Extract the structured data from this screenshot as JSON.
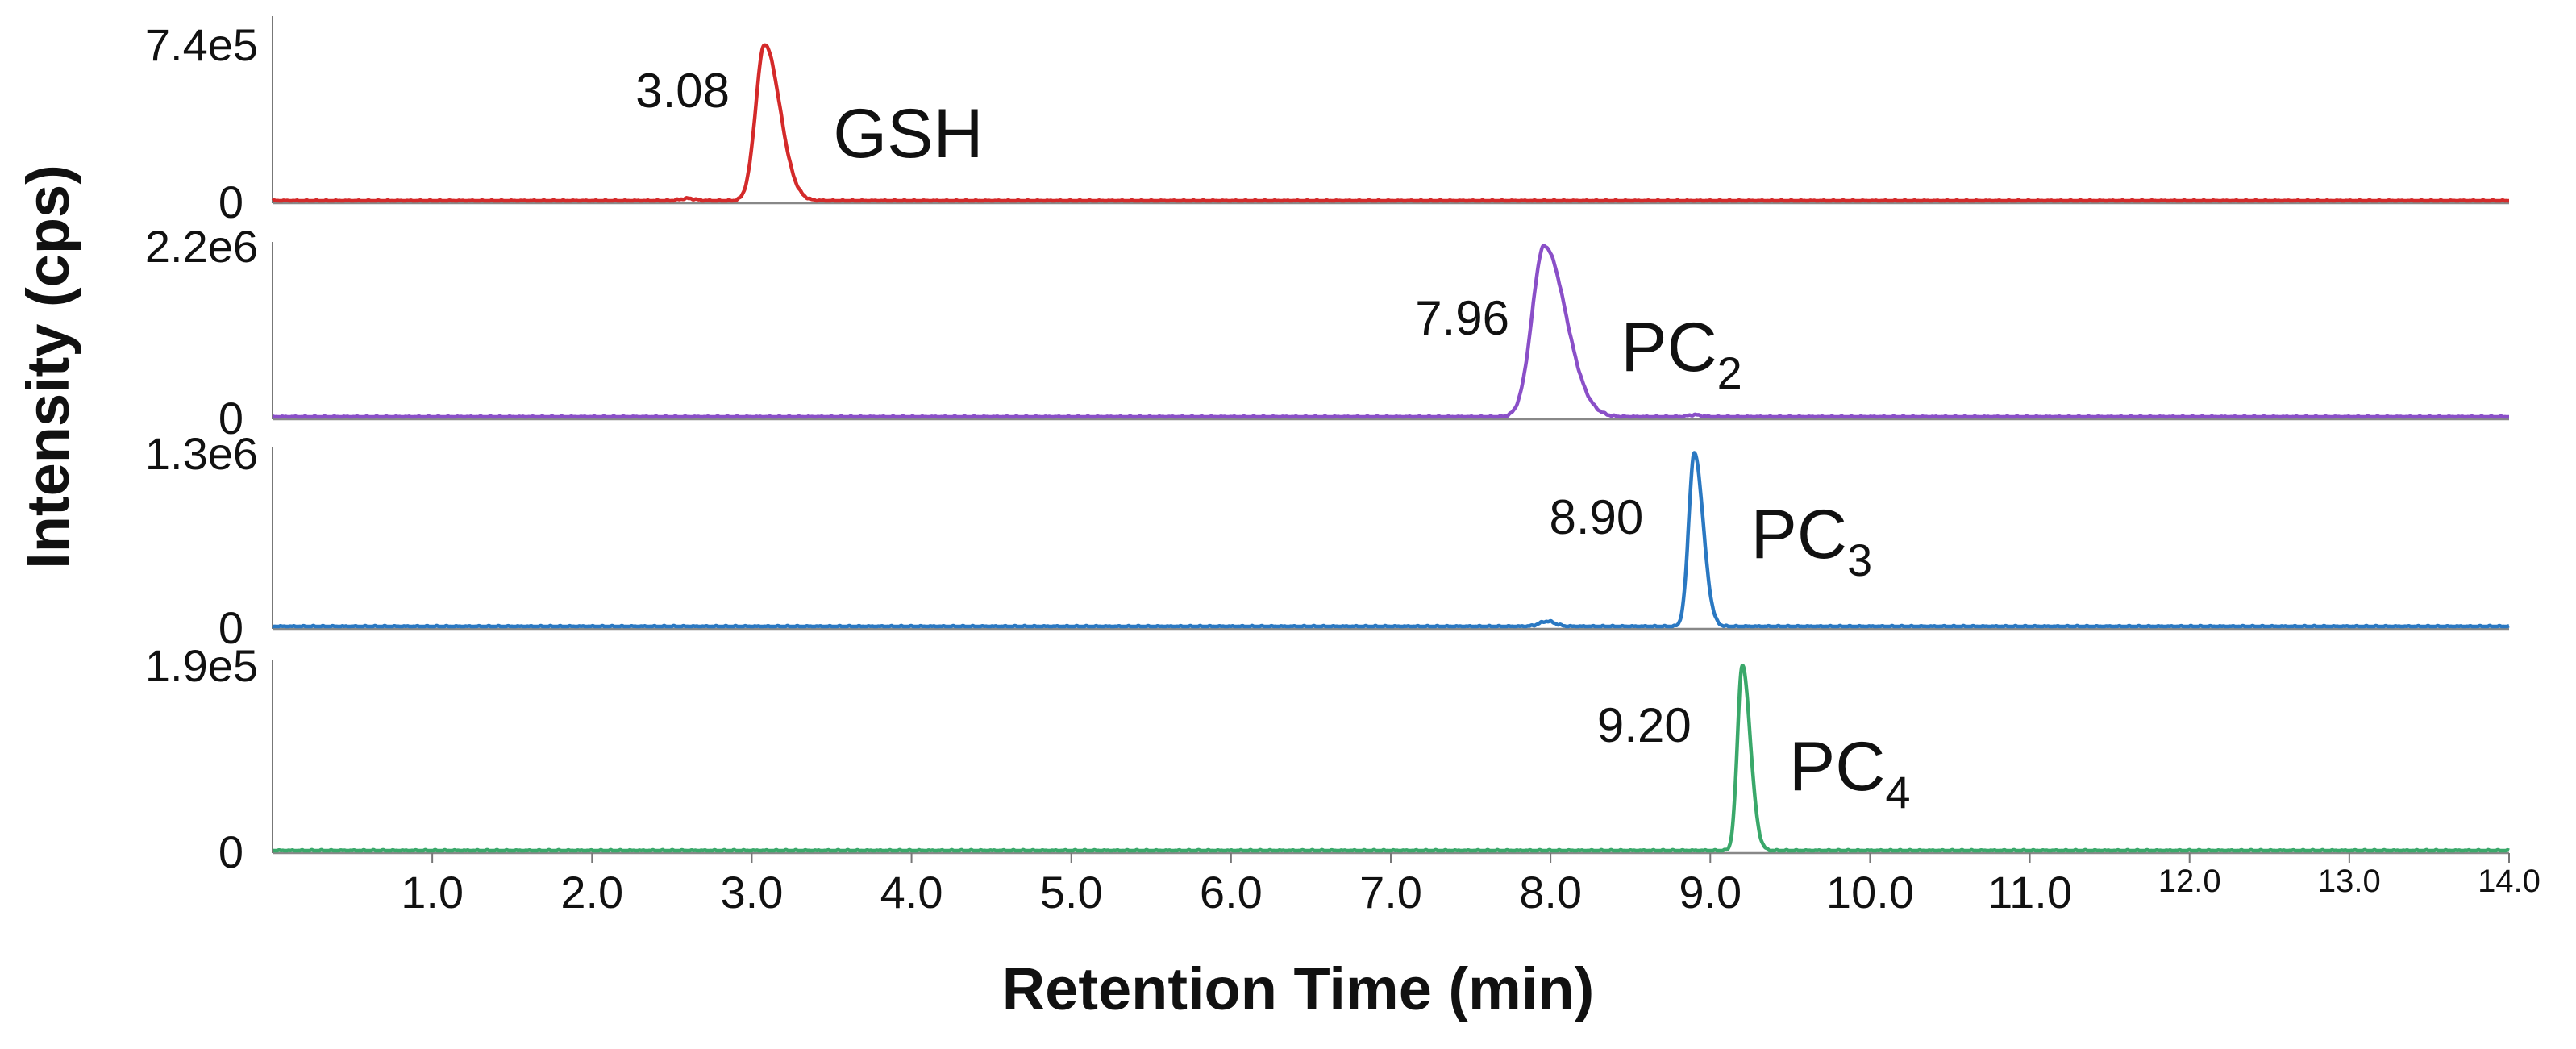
{
  "chart_data": {
    "type": "line",
    "title": "",
    "xlabel": "Retention Time (min)",
    "ylabel": "Intensity (cps)",
    "xlim": [
      0,
      14
    ],
    "xticks": [
      {
        "value": 1,
        "label": "1.0",
        "small": false
      },
      {
        "value": 2,
        "label": "2.0",
        "small": false
      },
      {
        "value": 3,
        "label": "3.0",
        "small": false
      },
      {
        "value": 4,
        "label": "4.0",
        "small": false
      },
      {
        "value": 5,
        "label": "5.0",
        "small": false
      },
      {
        "value": 6,
        "label": "6.0",
        "small": false
      },
      {
        "value": 7,
        "label": "7.0",
        "small": false
      },
      {
        "value": 8,
        "label": "8.0",
        "small": false
      },
      {
        "value": 9,
        "label": "9.0",
        "small": false
      },
      {
        "value": 10,
        "label": "10.0",
        "small": false
      },
      {
        "value": 11,
        "label": "11.0",
        "small": false
      },
      {
        "value": 12,
        "label": "12.0",
        "small": true
      },
      {
        "value": 13,
        "label": "13.0",
        "small": true
      },
      {
        "value": 14,
        "label": "14.0",
        "small": true
      }
    ],
    "series": [
      {
        "name": "GSH",
        "subscript": "",
        "color": "#d42a2a",
        "ymax_value": 740000,
        "ymax_label": "7.4e5",
        "ymin_label": "0",
        "peak_rt": 3.08,
        "peak_label": "3.08",
        "peak_width": 0.055,
        "tail": 0.04,
        "minor_peaks": [
          {
            "rt": 2.6,
            "height": 0.015,
            "width": 0.05
          }
        ]
      },
      {
        "name": "PC",
        "subscript": "2",
        "color": "#8a4fc8",
        "ymax_value": 2200000,
        "ymax_label": "2.2e6",
        "ymin_label": "0",
        "peak_rt": 7.96,
        "peak_label": "7.96",
        "peak_width": 0.075,
        "tail": 0.06,
        "minor_peaks": [
          {
            "rt": 8.9,
            "height": 0.012,
            "width": 0.04
          }
        ]
      },
      {
        "name": "PC",
        "subscript": "3",
        "color": "#2a78c2",
        "ymax_value": 1300000,
        "ymax_label": "1.3e6",
        "ymin_label": "0",
        "peak_rt": 8.9,
        "peak_label": "8.90",
        "peak_width": 0.035,
        "tail": 0.02,
        "minor_peaks": [
          {
            "rt": 7.98,
            "height": 0.03,
            "width": 0.05
          }
        ]
      },
      {
        "name": "PC",
        "subscript": "4",
        "color": "#3aa86a",
        "ymax_value": 190000,
        "ymax_label": "1.9e5",
        "ymin_label": "0",
        "peak_rt": 9.2,
        "peak_label": "9.20",
        "peak_width": 0.03,
        "tail": 0.02,
        "minor_peaks": []
      }
    ]
  }
}
